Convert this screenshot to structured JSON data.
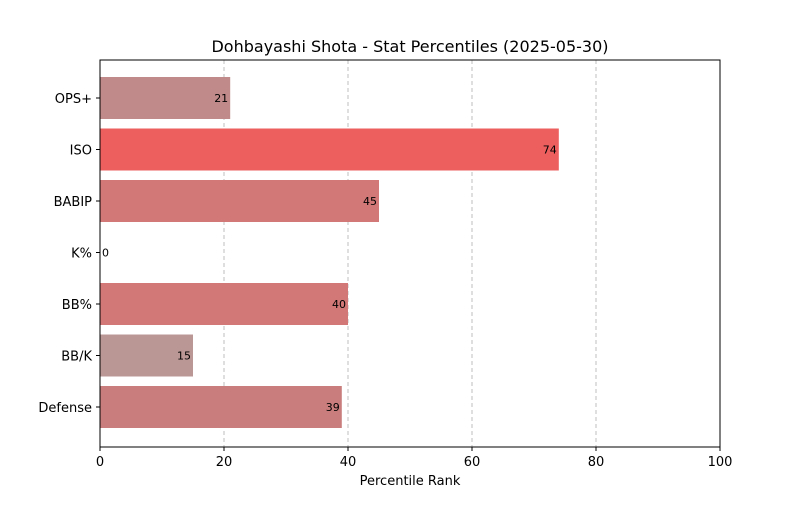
{
  "chart_data": {
    "type": "bar",
    "orientation": "horizontal",
    "title": "Dohbayashi Shota - Stat Percentiles (2025-05-30)",
    "xlabel": "Percentile Rank",
    "ylabel": "",
    "xlim": [
      0,
      100
    ],
    "xticks": [
      0,
      20,
      40,
      60,
      80,
      100
    ],
    "grid": "x-dashed",
    "categories": [
      "OPS+",
      "ISO",
      "BABIP",
      "K%",
      "BB%",
      "BB/K",
      "Defense"
    ],
    "values": [
      21,
      74,
      45,
      0,
      40,
      15,
      39
    ],
    "colors": [
      "#bf8a89",
      "#ed5f5f",
      "#d27876",
      "#b39e9e",
      "#d27876",
      "#ba9795",
      "#c97e7d"
    ]
  }
}
